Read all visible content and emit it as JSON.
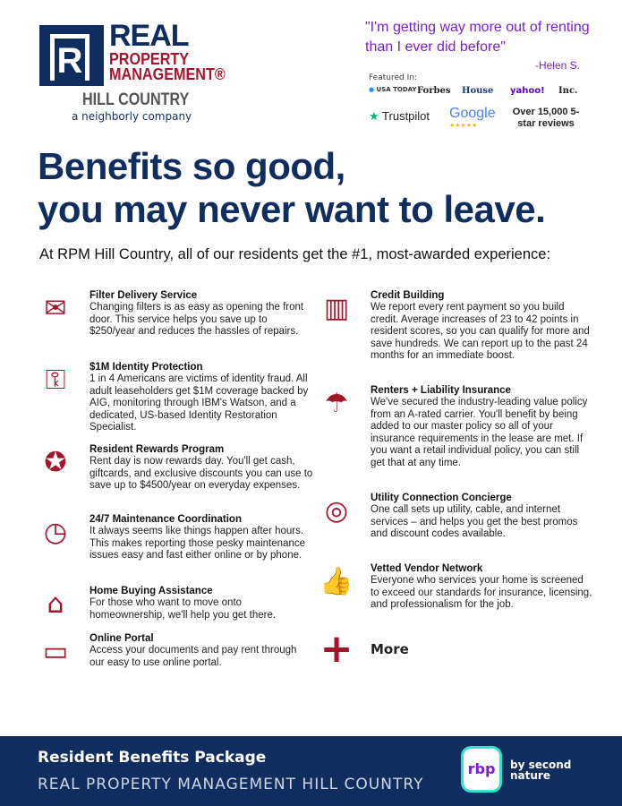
{
  "header": {
    "logo_real": "REAL",
    "logo_pm": "PROPERTY MANAGEMENT®",
    "logo_hc": "HILL COUNTRY",
    "logo_tagline": "a neighborly company",
    "quote": "\"I'm getting way more out of renting than I ever did before\"",
    "quote_author": "-Helen S.",
    "featured_label": "Featured In:",
    "media": [
      "USA TODAY",
      "Forbes",
      "House",
      "yahoo!",
      "Inc."
    ],
    "trustpilot": "Trustpilot",
    "google": "Google",
    "reviews": "Over 15,000 5-star reviews"
  },
  "headline": [
    "Benefits so good,",
    "you may never want to leave."
  ],
  "intro": "At RPM Hill Country, all of our residents get the #1, most-awarded experience:",
  "left_items": [
    {
      "icon": "filter-delivery-icon",
      "title": "Filter Delivery Service",
      "text": "Changing filters is as easy as opening the front door. This service helps you save up to $250/year and reduces the hassles of repairs."
    },
    {
      "icon": "identity-protection-icon",
      "title": "$1M Identity Protection",
      "text": "1 in 4 Americans are victims of identity fraud. All adult leaseholders get $1M coverage backed by AIG, monitoring through IBM's Watson, and a dedicated, US-based Identity Restoration Specialist."
    },
    {
      "icon": "award-ribbon-icon",
      "title": "Resident Rewards Program",
      "text": "Rent day is now rewards day. You'll get cash, giftcards, and exclusive discounts you can use to save up to $4500/year on everyday expenses."
    },
    {
      "icon": "clock-icon",
      "title": "24/7 Maintenance Coordination",
      "text": "It always seems like things happen after hours. This makes reporting those pesky maintenance issues easy and fast either online or by phone."
    },
    {
      "icon": "house-sign-icon",
      "title": "Home Buying Assistance",
      "text": "For those who want to move onto homeownership, we'll help you get there."
    },
    {
      "icon": "laptop-icon",
      "title": "Online Portal",
      "text": "Access your documents and pay rent through our easy to use online portal."
    }
  ],
  "right_items": [
    {
      "icon": "chart-icon",
      "title": "Credit Building",
      "text": "We report every rent payment so you build credit. Average increases of 23 to 42 points in resident scores, so you can qualify for more and save hundreds. We can report up to the past 24 months for an immediate boost."
    },
    {
      "icon": "umbrella-house-icon",
      "title": "Renters + Liability Insurance",
      "text": "We've secured the industry-leading value policy from an A-rated carrier. You'll benefit by being added to our master policy so all of your insurance requirements in the lease are met. If you want a retail individual policy, you can still get that at any time."
    },
    {
      "icon": "thermostat-icon",
      "title": "Utility Connection Concierge",
      "text": "One call sets up utility, cable, and internet services – and helps you get the best promos and discount codes available."
    },
    {
      "icon": "thumbs-up-icon",
      "title": "Vetted Vendor Network",
      "text": "Everyone who services your home is screened to exceed our standards for insurance, licensing, and professionalism for the job."
    }
  ],
  "more": "More",
  "footer": {
    "title": "Resident Benefits Package",
    "watermark": "REAL PROPERTY MANAGEMENT HILL COUNTRY",
    "rbp": "rbp",
    "second_nature": "by second nature"
  },
  "colors": {
    "navy": "#0f2e5f",
    "red": "#a3152b",
    "purple": "#7a1fd0"
  }
}
